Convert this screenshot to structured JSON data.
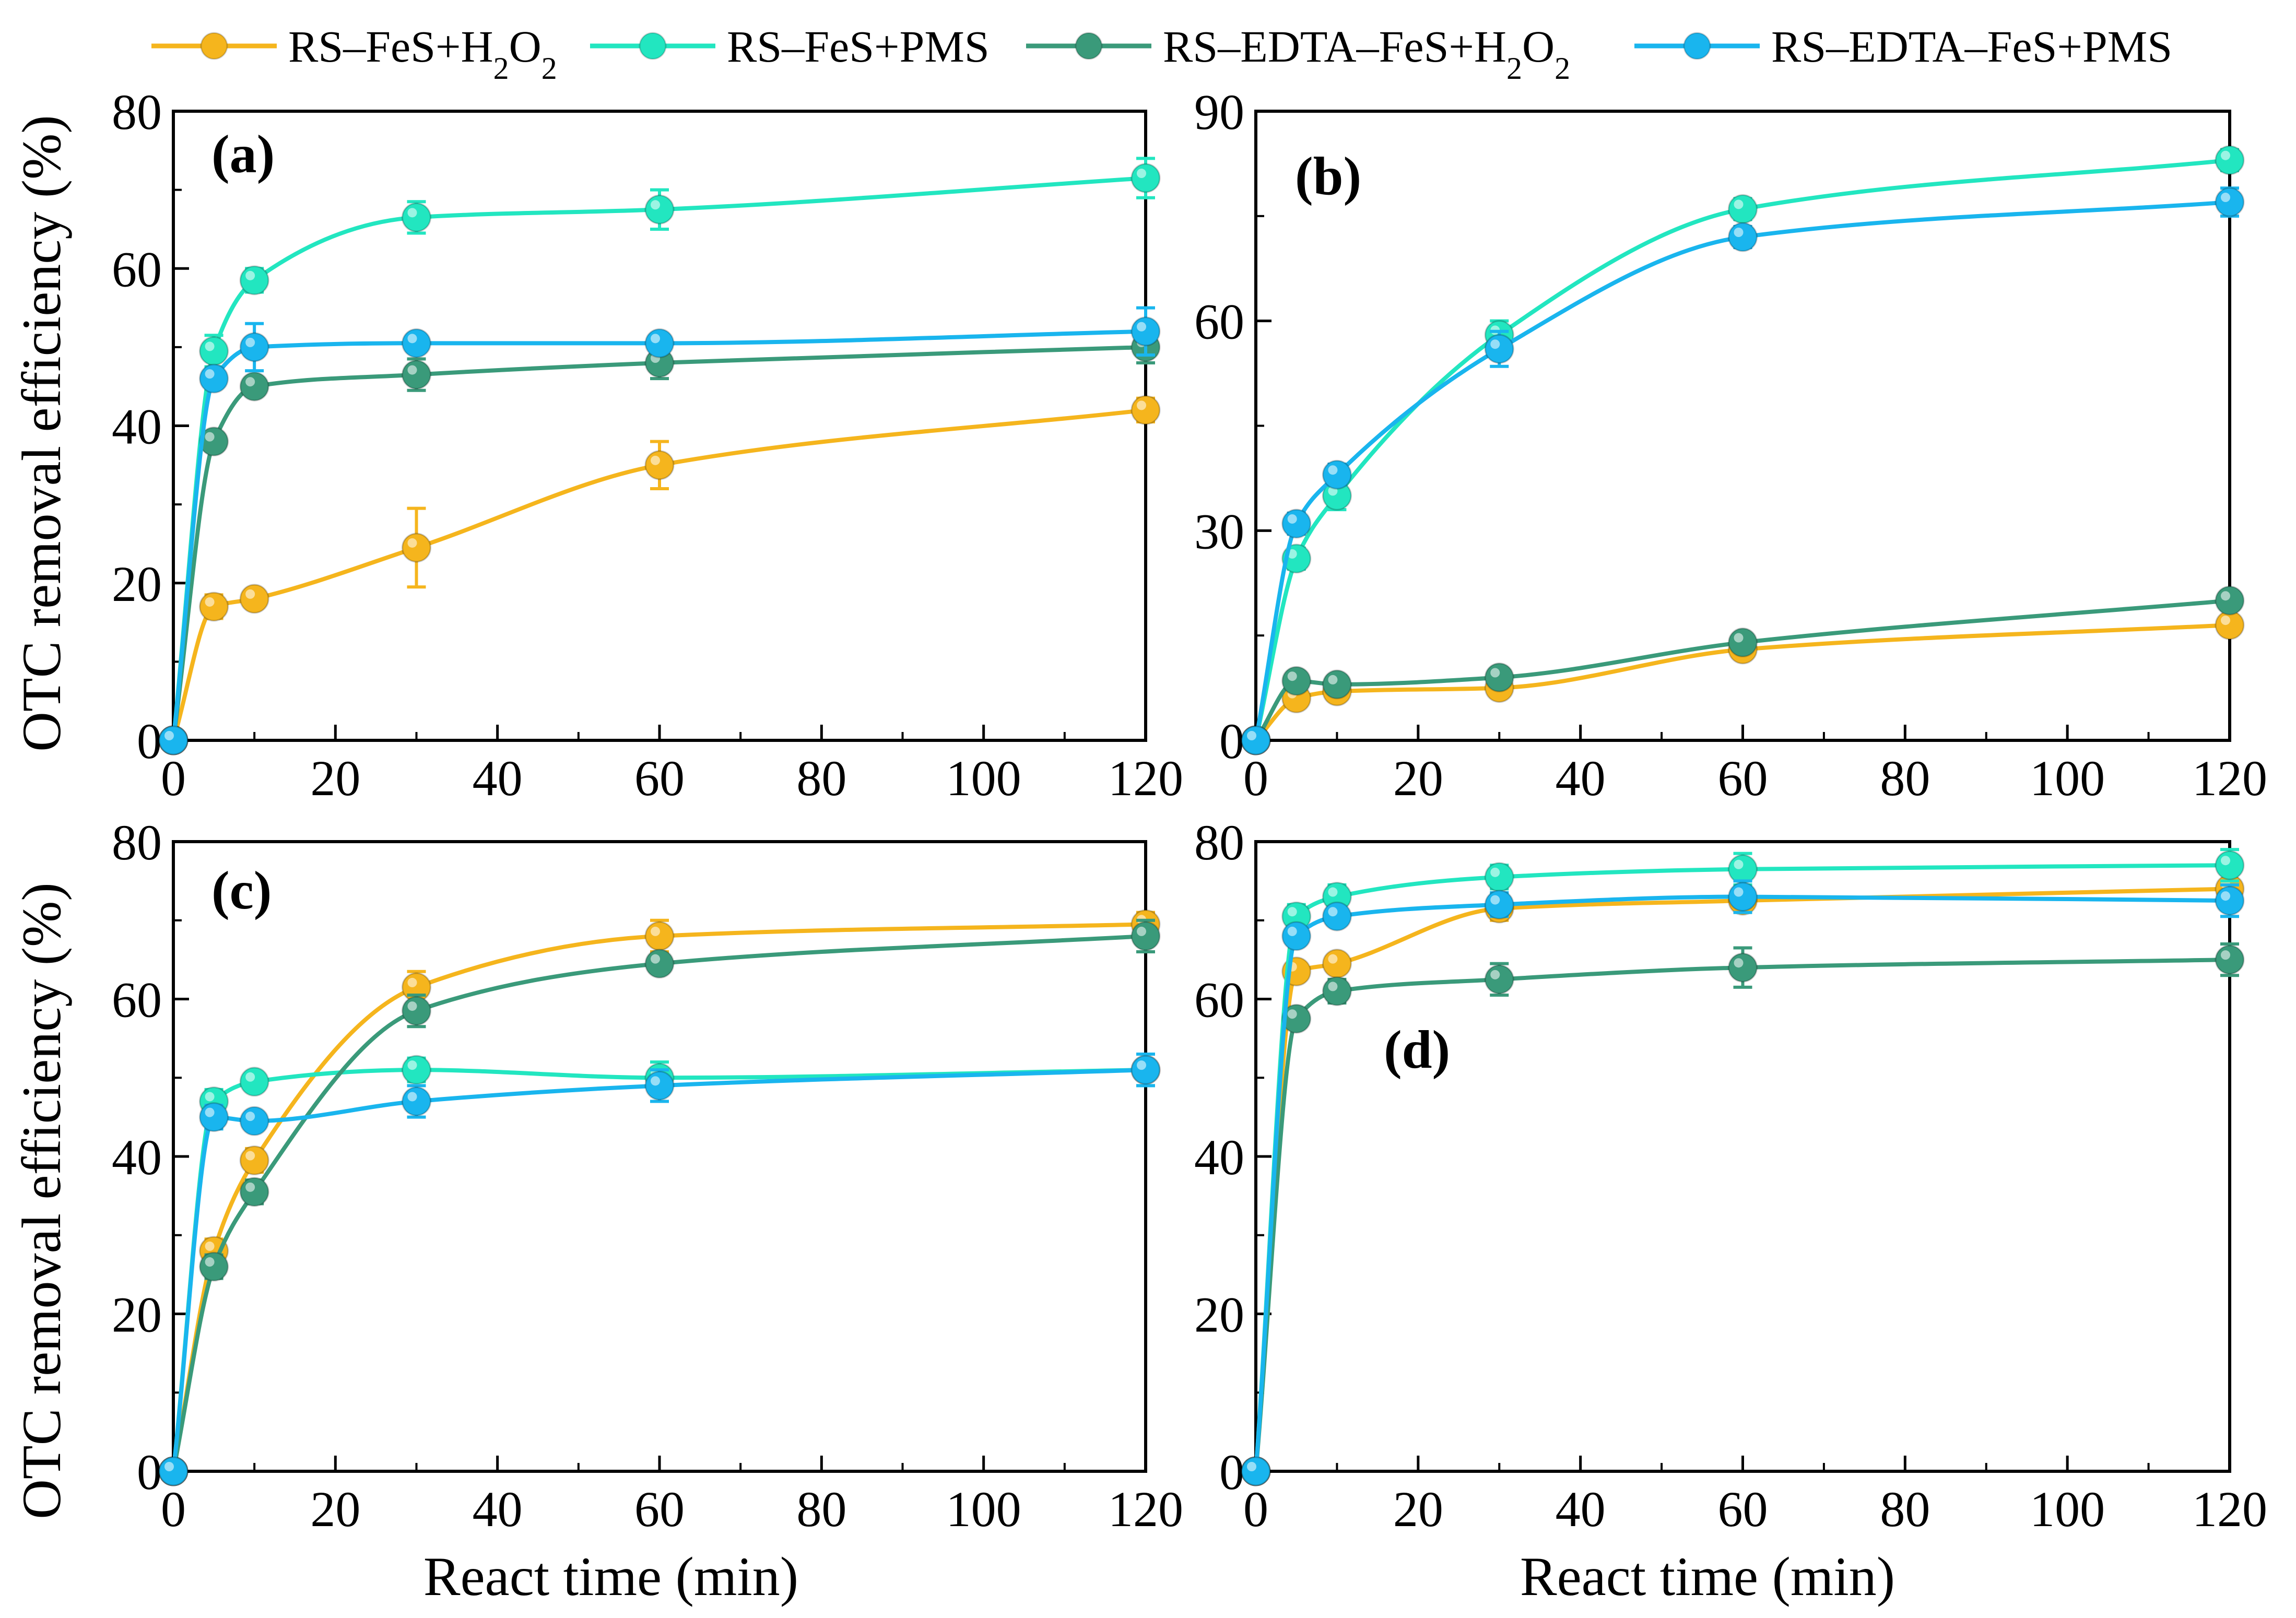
{
  "legend": [
    {
      "label": "RS–FeS+H",
      "sub": "2",
      "label2": "O",
      "sub2": "2",
      "color": "#f5b51d"
    },
    {
      "label": "RS–FeS+PMS",
      "color": "#22e6c0"
    },
    {
      "label": "RS–EDTA–FeS+H",
      "sub": "2",
      "label2": "O",
      "sub2": "2",
      "color": "#3a9a7a"
    },
    {
      "label": "RS–EDTA–FeS+PMS",
      "color": "#19b5ee"
    }
  ],
  "axis_labels": {
    "y_top": "OTC removal efficiency (%)",
    "y_bottom": "OTC removal efficiency (%)",
    "x_left": "React time (min)",
    "x_right": "React time (min)"
  },
  "chart_data": [
    {
      "type": "line",
      "panel": "(a)",
      "xlabel": "",
      "ylabel": "OTC removal efficiency (%)",
      "xlim": [
        0,
        120
      ],
      "ylim": [
        0,
        80
      ],
      "xticks": [
        0,
        20,
        40,
        60,
        80,
        100,
        120
      ],
      "yticks": [
        0,
        20,
        40,
        60,
        80
      ],
      "x": [
        0,
        5,
        10,
        30,
        60,
        120
      ],
      "series": [
        {
          "name": "RS–FeS+H2O2",
          "color": "#f5b51d",
          "values": [
            0,
            17,
            18,
            24.5,
            35,
            42
          ],
          "errors": [
            0,
            1.5,
            1,
            5,
            3,
            1.5
          ]
        },
        {
          "name": "RS–FeS+PMS",
          "color": "#22e6c0",
          "values": [
            0,
            49.5,
            58.5,
            66.5,
            67.5,
            71.5
          ],
          "errors": [
            0,
            2,
            1.5,
            2,
            2.5,
            2.5
          ]
        },
        {
          "name": "RS–EDTA–FeS+H2O2",
          "color": "#3a9a7a",
          "values": [
            0,
            38,
            45,
            46.5,
            48,
            50
          ],
          "errors": [
            0,
            1,
            1,
            2,
            2,
            2
          ]
        },
        {
          "name": "RS–EDTA–FeS+PMS",
          "color": "#19b5ee",
          "values": [
            0,
            46,
            50,
            50.5,
            50.5,
            52
          ],
          "errors": [
            0,
            1,
            3,
            1,
            1,
            3
          ]
        }
      ]
    },
    {
      "type": "line",
      "panel": "(b)",
      "xlabel": "",
      "ylabel": "",
      "xlim": [
        0,
        120
      ],
      "ylim": [
        0,
        90
      ],
      "xticks": [
        0,
        20,
        40,
        60,
        80,
        100,
        120
      ],
      "yticks": [
        0,
        30,
        60,
        90
      ],
      "x": [
        0,
        5,
        10,
        30,
        60,
        120
      ],
      "series": [
        {
          "name": "RS–FeS+H2O2",
          "color": "#f5b51d",
          "values": [
            0,
            6,
            7,
            7.5,
            13,
            16.5
          ],
          "errors": [
            0,
            1,
            1,
            1,
            1,
            1
          ]
        },
        {
          "name": "RS–FeS+PMS",
          "color": "#22e6c0",
          "values": [
            0,
            26,
            35,
            58,
            76,
            83
          ],
          "errors": [
            0,
            1.5,
            2,
            2,
            1.5,
            1.5
          ]
        },
        {
          "name": "RS–EDTA–FeS+H2O2",
          "color": "#3a9a7a",
          "values": [
            0,
            8.5,
            8,
            9,
            14,
            20
          ],
          "errors": [
            0,
            1,
            1,
            1,
            1,
            1
          ]
        },
        {
          "name": "RS–EDTA–FeS+PMS",
          "color": "#19b5ee",
          "values": [
            0,
            31,
            38,
            56,
            72,
            77
          ],
          "errors": [
            0,
            1.5,
            1.5,
            2.5,
            1.5,
            2
          ]
        }
      ]
    },
    {
      "type": "line",
      "panel": "(c)",
      "xlabel": "React time (min)",
      "ylabel": "OTC removal efficiency (%)",
      "xlim": [
        0,
        120
      ],
      "ylim": [
        0,
        80
      ],
      "xticks": [
        0,
        20,
        40,
        60,
        80,
        100,
        120
      ],
      "yticks": [
        0,
        20,
        40,
        60,
        80
      ],
      "x": [
        0,
        5,
        10,
        30,
        60,
        120
      ],
      "series": [
        {
          "name": "RS–FeS+H2O2",
          "color": "#f5b51d",
          "values": [
            0,
            28,
            39.5,
            61.5,
            68,
            69.5
          ],
          "errors": [
            0,
            1.5,
            1.5,
            2,
            2,
            1.5
          ]
        },
        {
          "name": "RS–FeS+PMS",
          "color": "#22e6c0",
          "values": [
            0,
            47,
            49.5,
            51,
            50,
            51
          ],
          "errors": [
            0,
            1.5,
            1,
            1.5,
            2,
            2
          ]
        },
        {
          "name": "RS–EDTA–FeS+H2O2",
          "color": "#3a9a7a",
          "values": [
            0,
            26,
            35.5,
            58.5,
            64.5,
            68
          ],
          "errors": [
            0,
            1.5,
            1.5,
            2,
            1,
            2
          ]
        },
        {
          "name": "RS–EDTA–FeS+PMS",
          "color": "#19b5ee",
          "values": [
            0,
            45,
            44.5,
            47,
            49,
            51
          ],
          "errors": [
            0,
            1.5,
            1,
            2,
            2,
            2
          ]
        }
      ]
    },
    {
      "type": "line",
      "panel": "(d)",
      "xlabel": "React time (min)",
      "ylabel": "",
      "xlim": [
        0,
        120
      ],
      "ylim": [
        0,
        80
      ],
      "xticks": [
        0,
        20,
        40,
        60,
        80,
        100,
        120
      ],
      "yticks": [
        0,
        20,
        40,
        60,
        80
      ],
      "x": [
        0,
        5,
        10,
        30,
        60,
        120
      ],
      "series": [
        {
          "name": "RS–FeS+H2O2",
          "color": "#f5b51d",
          "values": [
            0,
            63.5,
            64.5,
            71.5,
            72.5,
            74
          ],
          "errors": [
            0,
            1,
            1,
            1.5,
            1.5,
            2
          ]
        },
        {
          "name": "RS–FeS+PMS",
          "color": "#22e6c0",
          "values": [
            0,
            70.5,
            73,
            75.5,
            76.5,
            77
          ],
          "errors": [
            0,
            1.5,
            1.5,
            1.5,
            2,
            2
          ]
        },
        {
          "name": "RS–EDTA–FeS+H2O2",
          "color": "#3a9a7a",
          "values": [
            0,
            57.5,
            61,
            62.5,
            64,
            65
          ],
          "errors": [
            0,
            1,
            1.5,
            2,
            2.5,
            2
          ]
        },
        {
          "name": "RS–EDTA–FeS+PMS",
          "color": "#19b5ee",
          "values": [
            0,
            68,
            70.5,
            72,
            73,
            72.5
          ],
          "errors": [
            0,
            1,
            1,
            1.5,
            2,
            2
          ]
        }
      ]
    }
  ]
}
